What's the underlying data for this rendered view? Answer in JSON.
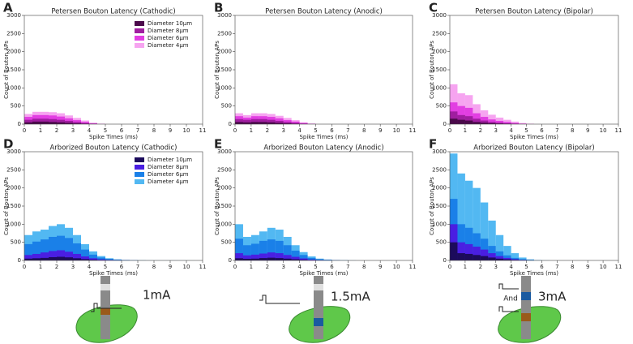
{
  "chart_data": [
    {
      "type": "histogram",
      "panel": "A",
      "title": "Petersen Bouton Latency (Cathodic)",
      "xlabel": "Spike Times (ms)",
      "ylabel": "Count of Bouton APs",
      "legend": "upper right",
      "bins": [
        0,
        0.5,
        1,
        1.5,
        2,
        2.5,
        3,
        3.5,
        4,
        4.5,
        5,
        5.5,
        6,
        6.5,
        7,
        7.5,
        8,
        8.5,
        9,
        9.5,
        10,
        10.5,
        11
      ],
      "series": [
        {
          "name": "Diameter 10μm",
          "color": "#4b0a4b",
          "values": [
            50,
            70,
            70,
            60,
            50,
            35,
            20,
            10,
            3,
            0,
            0,
            0,
            0,
            0,
            0,
            0,
            0,
            0,
            0,
            0,
            0,
            0
          ]
        },
        {
          "name": "Diameter 8μm",
          "color": "#a01ea0",
          "values": [
            120,
            150,
            150,
            140,
            120,
            90,
            60,
            30,
            10,
            0,
            0,
            0,
            0,
            0,
            0,
            0,
            0,
            0,
            0,
            0,
            0,
            0
          ]
        },
        {
          "name": "Diameter 6μm",
          "color": "#e23ee2",
          "values": [
            200,
            250,
            250,
            240,
            210,
            160,
            110,
            60,
            20,
            5,
            0,
            0,
            0,
            0,
            0,
            0,
            0,
            0,
            0,
            0,
            0,
            0
          ]
        },
        {
          "name": "Diameter 4μm",
          "color": "#f6a4f0",
          "values": [
            280,
            340,
            340,
            330,
            300,
            240,
            170,
            100,
            40,
            10,
            0,
            0,
            0,
            0,
            0,
            0,
            0,
            0,
            0,
            0,
            0,
            0
          ]
        }
      ],
      "xlim": [
        0,
        11
      ],
      "xticks": [
        0,
        1,
        2,
        3,
        4,
        5,
        6,
        7,
        8,
        9,
        10,
        11
      ],
      "ylim": [
        0,
        3000
      ],
      "yticks": [
        0,
        500,
        1000,
        1500,
        2000,
        2500,
        3000
      ]
    },
    {
      "type": "histogram",
      "panel": "B",
      "title": "Petersen Bouton Latency (Anodic)",
      "xlabel": "Spike Times (ms)",
      "ylabel": "Count of Bouton APs",
      "bins": [
        0,
        0.5,
        1,
        1.5,
        2,
        2.5,
        3,
        3.5,
        4,
        4.5,
        5,
        5.5,
        6,
        6.5,
        7,
        7.5,
        8,
        8.5,
        9,
        9.5,
        10,
        10.5,
        11
      ],
      "series": [
        {
          "color": "#4b0a4b",
          "values": [
            60,
            50,
            60,
            60,
            50,
            35,
            20,
            10,
            4,
            0,
            0,
            0,
            0,
            0,
            0,
            0,
            0,
            0,
            0,
            0,
            0,
            0
          ]
        },
        {
          "color": "#a01ea0",
          "values": [
            140,
            120,
            140,
            140,
            120,
            90,
            60,
            35,
            12,
            3,
            0,
            0,
            0,
            0,
            0,
            0,
            0,
            0,
            0,
            0,
            0,
            0
          ]
        },
        {
          "color": "#e23ee2",
          "values": [
            220,
            180,
            220,
            220,
            200,
            160,
            110,
            70,
            30,
            8,
            0,
            0,
            0,
            0,
            0,
            0,
            0,
            0,
            0,
            0,
            0,
            0
          ]
        },
        {
          "color": "#f6a4f0",
          "values": [
            300,
            250,
            300,
            300,
            280,
            230,
            170,
            110,
            50,
            15,
            0,
            0,
            0,
            0,
            0,
            0,
            0,
            0,
            0,
            0,
            0,
            0
          ]
        }
      ],
      "xlim": [
        0,
        11
      ],
      "xticks": [
        0,
        1,
        2,
        3,
        4,
        5,
        6,
        7,
        8,
        9,
        10,
        11
      ],
      "ylim": [
        0,
        3000
      ],
      "yticks": [
        0,
        500,
        1000,
        1500,
        2000,
        2500,
        3000
      ]
    },
    {
      "type": "histogram",
      "panel": "C",
      "title": "Petersen Bouton Latency (Bipolar)",
      "xlabel": "Spike Times (ms)",
      "ylabel": "Count of Bouton APs",
      "bins": [
        0,
        0.5,
        1,
        1.5,
        2,
        2.5,
        3,
        3.5,
        4,
        4.5,
        5,
        5.5,
        6,
        6.5,
        7,
        7.5,
        8,
        8.5,
        9,
        9.5,
        10,
        10.5,
        11
      ],
      "series": [
        {
          "color": "#4b0a4b",
          "values": [
            150,
            120,
            100,
            60,
            40,
            25,
            15,
            8,
            3,
            0,
            0,
            0,
            0,
            0,
            0,
            0,
            0,
            0,
            0,
            0,
            0,
            0
          ]
        },
        {
          "color": "#a01ea0",
          "values": [
            350,
            250,
            220,
            150,
            100,
            60,
            40,
            25,
            12,
            4,
            0,
            0,
            0,
            0,
            0,
            0,
            0,
            0,
            0,
            0,
            0,
            0
          ]
        },
        {
          "color": "#e23ee2",
          "values": [
            600,
            500,
            450,
            300,
            200,
            130,
            90,
            60,
            30,
            10,
            3,
            0,
            0,
            0,
            0,
            0,
            0,
            0,
            0,
            0,
            0,
            0
          ]
        },
        {
          "color": "#f6a4f0",
          "values": [
            1100,
            850,
            800,
            550,
            380,
            260,
            180,
            120,
            70,
            30,
            10,
            0,
            0,
            0,
            0,
            0,
            0,
            0,
            0,
            0,
            0,
            0
          ]
        }
      ],
      "xlim": [
        0,
        11
      ],
      "xticks": [
        0,
        1,
        2,
        3,
        4,
        5,
        6,
        7,
        8,
        9,
        10,
        11
      ],
      "ylim": [
        0,
        3000
      ],
      "yticks": [
        0,
        500,
        1000,
        1500,
        2000,
        2500,
        3000
      ]
    },
    {
      "type": "histogram",
      "panel": "D",
      "title": "Arborized Bouton Latency (Cathodic)",
      "xlabel": "Spike Times (ms)",
      "ylabel": "Count of Bouton APs",
      "legend": "upper right",
      "bins": [
        0,
        0.5,
        1,
        1.5,
        2,
        2.5,
        3,
        3.5,
        4,
        4.5,
        5,
        5.5,
        6,
        6.5,
        7,
        7.5,
        8,
        8.5,
        9,
        9.5,
        10,
        10.5,
        11
      ],
      "series": [
        {
          "name": "Diameter 10μm",
          "color": "#1c0b5c",
          "values": [
            50,
            60,
            70,
            90,
            100,
            85,
            60,
            35,
            20,
            10,
            5,
            2,
            1,
            0,
            0,
            0,
            0,
            0,
            0,
            0,
            0,
            0
          ]
        },
        {
          "name": "Diameter 8μm",
          "color": "#4a1ee2",
          "values": [
            150,
            180,
            220,
            260,
            280,
            240,
            180,
            110,
            60,
            30,
            15,
            8,
            4,
            2,
            0,
            0,
            0,
            0,
            0,
            0,
            0,
            0
          ]
        },
        {
          "name": "Diameter 6μm",
          "color": "#1a80e8",
          "values": [
            450,
            520,
            580,
            650,
            680,
            620,
            470,
            300,
            160,
            80,
            40,
            20,
            10,
            5,
            2,
            0,
            0,
            0,
            0,
            0,
            0,
            0
          ]
        },
        {
          "name": "Diameter 4μm",
          "color": "#52b8f2",
          "values": [
            700,
            800,
            850,
            950,
            1000,
            900,
            700,
            450,
            250,
            120,
            60,
            30,
            15,
            10,
            5,
            3,
            2,
            2,
            3,
            2,
            1,
            0
          ]
        }
      ],
      "xlim": [
        0,
        11
      ],
      "xticks": [
        0,
        1,
        2,
        3,
        4,
        5,
        6,
        7,
        8,
        9,
        10,
        11
      ],
      "ylim": [
        0,
        3000
      ],
      "yticks": [
        0,
        500,
        1000,
        1500,
        2000,
        2500,
        3000
      ]
    },
    {
      "type": "histogram",
      "panel": "E",
      "title": "Arborized Bouton Latency (Anodic)",
      "xlabel": "Spike Times (ms)",
      "ylabel": "Count of Bouton APs",
      "bins": [
        0,
        0.5,
        1,
        1.5,
        2,
        2.5,
        3,
        3.5,
        4,
        4.5,
        5,
        5.5,
        6,
        6.5,
        7,
        7.5,
        8,
        8.5,
        9,
        9.5,
        10,
        10.5,
        11
      ],
      "series": [
        {
          "color": "#1c0b5c",
          "values": [
            60,
            45,
            50,
            65,
            75,
            65,
            50,
            32,
            18,
            8,
            4,
            2,
            0,
            0,
            0,
            0,
            0,
            0,
            0,
            0,
            0,
            0
          ]
        },
        {
          "color": "#4a1ee2",
          "values": [
            200,
            140,
            160,
            190,
            220,
            200,
            150,
            100,
            55,
            25,
            12,
            6,
            3,
            0,
            0,
            0,
            0,
            0,
            0,
            0,
            0,
            0
          ]
        },
        {
          "color": "#1a80e8",
          "values": [
            600,
            420,
            460,
            540,
            580,
            540,
            420,
            270,
            150,
            70,
            30,
            15,
            8,
            4,
            0,
            0,
            0,
            0,
            0,
            0,
            0,
            0
          ]
        },
        {
          "color": "#52b8f2",
          "values": [
            1000,
            650,
            700,
            800,
            900,
            850,
            650,
            420,
            230,
            110,
            50,
            25,
            12,
            6,
            3,
            0,
            0,
            0,
            0,
            0,
            0,
            0
          ]
        }
      ],
      "xlim": [
        0,
        11
      ],
      "xticks": [
        0,
        1,
        2,
        3,
        4,
        5,
        6,
        7,
        8,
        9,
        10,
        11
      ],
      "ylim": [
        0,
        3000
      ],
      "yticks": [
        0,
        500,
        1000,
        1500,
        2000,
        2500,
        3000
      ]
    },
    {
      "type": "histogram",
      "panel": "F",
      "title": "Arborized Bouton Latency (Bipolar)",
      "xlabel": "Spike Times (ms)",
      "ylabel": "Count of Bouton APs",
      "bins": [
        0,
        0.5,
        1,
        1.5,
        2,
        2.5,
        3,
        3.5,
        4,
        4.5,
        5,
        5.5,
        6,
        6.5,
        7,
        7.5,
        8,
        8.5,
        9,
        9.5,
        10,
        10.5,
        11
      ],
      "series": [
        {
          "color": "#1c0b5c",
          "values": [
            500,
            200,
            180,
            150,
            120,
            80,
            50,
            30,
            15,
            6,
            2,
            0,
            0,
            0,
            0,
            0,
            0,
            0,
            0,
            0,
            0,
            0
          ]
        },
        {
          "color": "#4a1ee2",
          "values": [
            1000,
            500,
            450,
            380,
            300,
            200,
            120,
            70,
            35,
            15,
            5,
            0,
            0,
            0,
            0,
            0,
            0,
            0,
            0,
            0,
            0,
            0
          ]
        },
        {
          "color": "#1a80e8",
          "values": [
            1700,
            1000,
            900,
            750,
            600,
            400,
            250,
            140,
            70,
            30,
            10,
            3,
            0,
            0,
            0,
            0,
            0,
            0,
            0,
            0,
            0,
            0
          ]
        },
        {
          "color": "#52b8f2",
          "values": [
            2950,
            2400,
            2200,
            2000,
            1600,
            1100,
            700,
            400,
            200,
            80,
            30,
            10,
            3,
            0,
            0,
            0,
            0,
            0,
            0,
            0,
            0,
            0
          ]
        }
      ],
      "xlim": [
        0,
        11
      ],
      "xticks": [
        0,
        1,
        2,
        3,
        4,
        5,
        6,
        7,
        8,
        9,
        10,
        11
      ],
      "ylim": [
        0,
        3000
      ],
      "yticks": [
        0,
        500,
        1000,
        1500,
        2000,
        2500,
        3000
      ]
    }
  ],
  "illustrations": [
    {
      "label": "1mA"
    },
    {
      "label": "1.5mA"
    },
    {
      "label": "3mA",
      "connector": "And"
    }
  ]
}
